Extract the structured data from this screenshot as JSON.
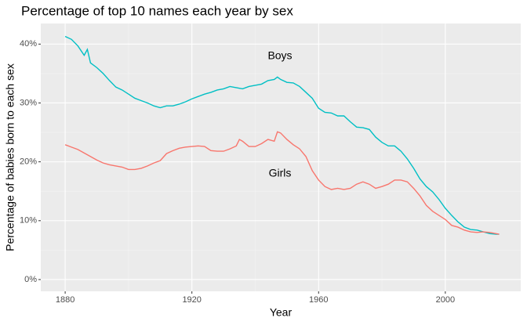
{
  "chart_data": {
    "type": "line",
    "title": "Percentage of top 10 names each year by sex",
    "x_label": "Year",
    "y_label": "Percentage of babies born to each sex",
    "annotations": [
      "Boys",
      "Girls"
    ],
    "x": [
      1880,
      1882,
      1884,
      1886,
      1887,
      1888,
      1890,
      1892,
      1894,
      1896,
      1898,
      1900,
      1902,
      1904,
      1906,
      1908,
      1910,
      1912,
      1914,
      1916,
      1918,
      1920,
      1922,
      1924,
      1926,
      1928,
      1930,
      1932,
      1934,
      1935,
      1936,
      1938,
      1940,
      1942,
      1944,
      1946,
      1947,
      1948,
      1950,
      1952,
      1954,
      1956,
      1958,
      1960,
      1962,
      1964,
      1966,
      1968,
      1970,
      1972,
      1974,
      1976,
      1978,
      1980,
      1982,
      1984,
      1986,
      1988,
      1990,
      1992,
      1994,
      1996,
      1998,
      2000,
      2002,
      2004,
      2006,
      2008,
      2010,
      2012,
      2014,
      2016,
      2017
    ],
    "series": [
      {
        "name": "Boys",
        "color": "#00bfc4",
        "values": [
          41.3,
          40.8,
          39.7,
          38.1,
          39.1,
          36.8,
          36.0,
          35.0,
          33.8,
          32.7,
          32.2,
          31.5,
          30.8,
          30.4,
          30.0,
          29.5,
          29.2,
          29.5,
          29.5,
          29.8,
          30.2,
          30.7,
          31.1,
          31.5,
          31.8,
          32.2,
          32.4,
          32.8,
          32.6,
          32.5,
          32.4,
          32.8,
          33.0,
          33.2,
          33.8,
          34.0,
          34.4,
          34.0,
          33.5,
          33.4,
          32.8,
          31.8,
          30.8,
          29.1,
          28.4,
          28.3,
          27.8,
          27.8,
          26.8,
          25.9,
          25.8,
          25.5,
          24.2,
          23.3,
          22.7,
          22.7,
          21.8,
          20.5,
          18.9,
          17.1,
          15.8,
          14.9,
          13.6,
          12.1,
          10.9,
          9.8,
          8.9,
          8.5,
          8.4,
          8.1,
          7.8,
          7.7,
          7.7
        ]
      },
      {
        "name": "Girls",
        "color": "#f8766d",
        "values": [
          22.9,
          22.5,
          22.1,
          21.5,
          21.2,
          20.9,
          20.3,
          19.8,
          19.5,
          19.3,
          19.1,
          18.7,
          18.7,
          18.9,
          19.3,
          19.8,
          20.2,
          21.4,
          21.9,
          22.3,
          22.5,
          22.6,
          22.7,
          22.6,
          21.9,
          21.8,
          21.8,
          22.2,
          22.7,
          23.8,
          23.5,
          22.6,
          22.6,
          23.1,
          23.8,
          23.5,
          25.1,
          24.9,
          23.8,
          22.9,
          22.2,
          20.9,
          18.5,
          16.9,
          15.8,
          15.3,
          15.5,
          15.3,
          15.5,
          16.2,
          16.6,
          16.2,
          15.5,
          15.8,
          16.2,
          16.9,
          16.9,
          16.6,
          15.5,
          14.2,
          12.6,
          11.6,
          10.9,
          10.2,
          9.2,
          8.9,
          8.4,
          8.1,
          8.0,
          8.1,
          8.0,
          7.8,
          7.7
        ]
      }
    ],
    "xlim": [
      1872.3,
      2023.8
    ],
    "xticks": [
      1880,
      1920,
      1960,
      2000
    ],
    "ylim": [
      -2,
      43.5
    ],
    "yticks": [
      {
        "value": 0,
        "label": "0%"
      },
      {
        "value": 10,
        "label": "10%"
      },
      {
        "value": 20,
        "label": "20%"
      },
      {
        "value": 30,
        "label": "30%"
      },
      {
        "value": 40,
        "label": "40%"
      }
    ],
    "grid": true
  }
}
